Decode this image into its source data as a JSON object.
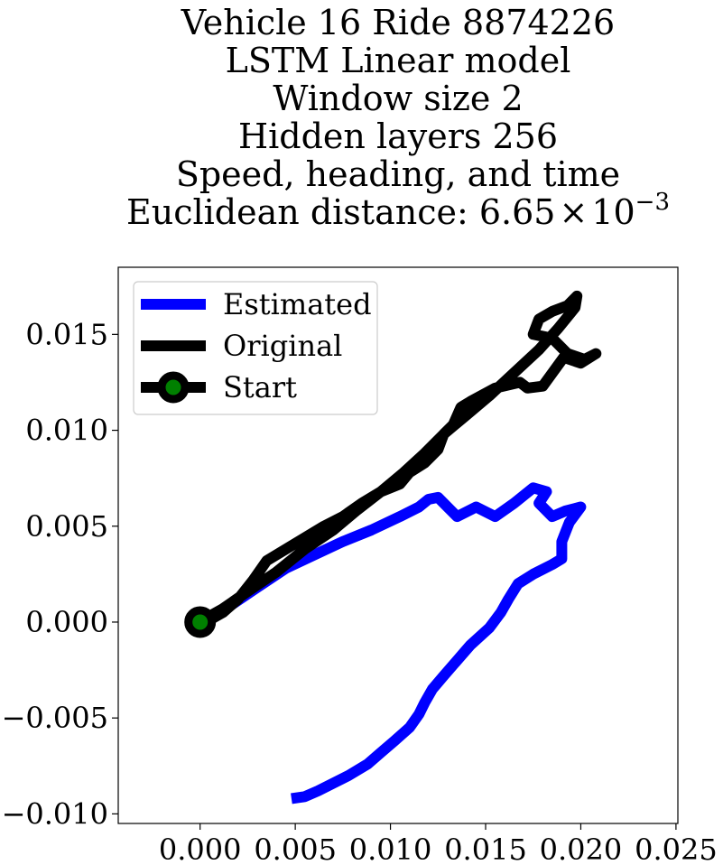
{
  "chart_data": {
    "type": "line",
    "title_lines": [
      "Vehicle 16 Ride 8874226",
      "LSTM Linear model",
      "Window size 2",
      "Hidden layers 256",
      "Speed, heading, and time"
    ],
    "title_distance_prefix": "Euclidean distance: 6.65",
    "title_distance_times": "×",
    "title_distance_base": "10",
    "title_distance_exponent": "−3",
    "xlabel": "",
    "ylabel": "",
    "xlim": [
      -0.0043,
      0.0251
    ],
    "ylim": [
      -0.0105,
      0.0185
    ],
    "x_ticks": [
      0.0,
      0.005,
      0.01,
      0.015,
      0.02,
      0.025
    ],
    "x_tick_labels": [
      "0.000",
      "0.005",
      "0.010",
      "0.015",
      "0.020",
      "0.025"
    ],
    "y_ticks": [
      -0.01,
      -0.005,
      0.0,
      0.005,
      0.01,
      0.015
    ],
    "y_tick_labels": [
      "−0.010",
      "−0.005",
      "0.000",
      "0.005",
      "0.010",
      "0.015"
    ],
    "grid": false,
    "legend_position": "top-left",
    "legend": [
      "Estimated",
      "Original",
      "Start"
    ],
    "series": [
      {
        "name": "Estimated",
        "color": "#0000ff",
        "x": [
          0.0,
          0.0015,
          0.003,
          0.0045,
          0.006,
          0.0075,
          0.009,
          0.0105,
          0.0115,
          0.012,
          0.0125,
          0.013,
          0.0135,
          0.0145,
          0.0155,
          0.0165,
          0.0175,
          0.0182,
          0.0178,
          0.0185,
          0.0192,
          0.02,
          0.0194,
          0.019,
          0.019,
          0.0185,
          0.0175,
          0.0167,
          0.0162,
          0.0158,
          0.0152,
          0.0142,
          0.0135,
          0.0128,
          0.0122,
          0.0118,
          0.0115,
          0.011,
          0.0102,
          0.0095,
          0.0088,
          0.0078,
          0.007,
          0.0062,
          0.0055,
          0.0048
        ],
        "y": [
          0.0,
          0.0008,
          0.0018,
          0.0028,
          0.0035,
          0.0042,
          0.0048,
          0.0055,
          0.006,
          0.0064,
          0.0065,
          0.006,
          0.0055,
          0.006,
          0.0055,
          0.0062,
          0.007,
          0.0068,
          0.0062,
          0.0055,
          0.0058,
          0.006,
          0.0052,
          0.0042,
          0.0033,
          0.003,
          0.0025,
          0.002,
          0.0012,
          0.0005,
          -0.0003,
          -0.0012,
          -0.002,
          -0.0028,
          -0.0035,
          -0.0042,
          -0.0048,
          -0.0055,
          -0.0062,
          -0.0068,
          -0.0074,
          -0.008,
          -0.0084,
          -0.0088,
          -0.0091,
          -0.0092
        ]
      },
      {
        "name": "Original",
        "color": "#000000",
        "x": [
          0.0003,
          0.0012,
          0.002,
          0.0028,
          0.0035,
          0.0045,
          0.0055,
          0.0065,
          0.0075,
          0.0085,
          0.0095,
          0.0105,
          0.011,
          0.0118,
          0.0125,
          0.0128,
          0.0133,
          0.0137,
          0.0142,
          0.0155,
          0.0168,
          0.0172,
          0.018,
          0.0191,
          0.02,
          0.0208,
          0.0202,
          0.0193,
          0.0185,
          0.0175,
          0.0178,
          0.0185,
          0.0193,
          0.0198,
          0.0197,
          0.0188,
          0.0178,
          0.0165,
          0.0152,
          0.014,
          0.0128,
          0.0118,
          0.0107,
          0.0095,
          0.0082,
          0.007,
          0.0055,
          0.004,
          0.0025,
          0.0012,
          0.0003
        ],
        "y": [
          0.0,
          0.0005,
          0.0012,
          0.0022,
          0.0032,
          0.0038,
          0.0044,
          0.005,
          0.0055,
          0.0062,
          0.0068,
          0.0072,
          0.0078,
          0.0083,
          0.009,
          0.0098,
          0.0103,
          0.0112,
          0.0115,
          0.0122,
          0.0125,
          0.0122,
          0.0123,
          0.0138,
          0.0135,
          0.014,
          0.0137,
          0.014,
          0.0148,
          0.015,
          0.0158,
          0.0162,
          0.0165,
          0.017,
          0.0164,
          0.0153,
          0.0142,
          0.013,
          0.0118,
          0.0108,
          0.0098,
          0.0088,
          0.0078,
          0.0068,
          0.0058,
          0.0048,
          0.0038,
          0.0026,
          0.0016,
          0.0007,
          0.0002
        ]
      },
      {
        "name": "Start",
        "color": "#008000",
        "marker_edge_color": "#000000",
        "x": [
          0.0
        ],
        "y": [
          0.0
        ]
      }
    ]
  }
}
